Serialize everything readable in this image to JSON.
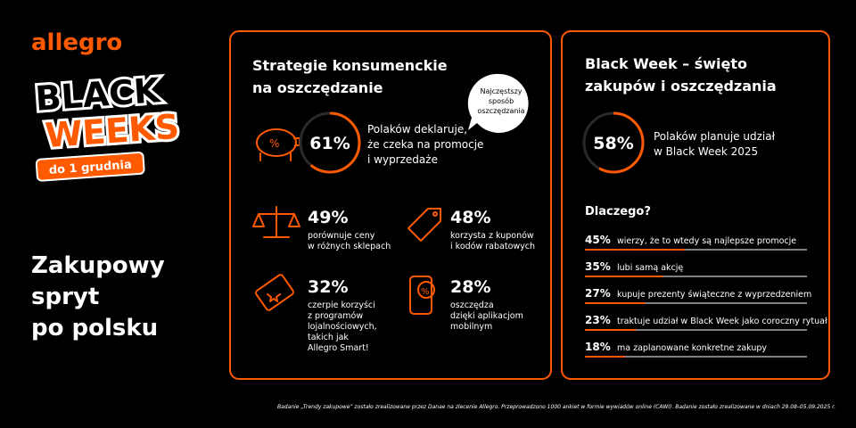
{
  "brand": "allegro",
  "badge": {
    "line1": "BLACK",
    "line2": "WEEKS",
    "date": "do 1 grudnia"
  },
  "headline": [
    "Zakupowy",
    "spryt",
    "po polsku"
  ],
  "strategies": {
    "title": [
      "Strategie konsumenckie",
      "na oszczędzanie"
    ],
    "bubble": [
      "Najczęstszy",
      "sposób",
      "oszczędzania"
    ],
    "main": {
      "value": 61,
      "label": "61%",
      "text": [
        "Polaków deklaruje,",
        "że czeka na promocje",
        "i wyprzedaże"
      ]
    },
    "items": [
      {
        "label": "49%",
        "text": [
          "porównuje ceny",
          "w różnych sklepach"
        ]
      },
      {
        "label": "48%",
        "text": [
          "korzysta z kuponów",
          "i kodów rabatowych"
        ]
      },
      {
        "label": "32%",
        "text": [
          "czerpie korzyści",
          "z programów",
          "lojalnościowych,",
          "takich jak",
          "Allegro Smart!"
        ]
      },
      {
        "label": "28%",
        "text": [
          "oszczędza",
          "dzięki aplikacjom",
          "mobilnym"
        ]
      }
    ]
  },
  "blackweek": {
    "title": [
      "Black Week – święto",
      "zakupów i oszczędzania"
    ],
    "main": {
      "value": 58,
      "label": "58%",
      "text": [
        "Polaków planuje udział",
        "w Black Week 2025"
      ]
    },
    "why_title": "Dlaczego?",
    "reasons": [
      {
        "value": 45,
        "label": "45%",
        "text": "wierzy, że to wtedy są najlepsze promocje"
      },
      {
        "value": 35,
        "label": "35%",
        "text": "lubi samą akcję"
      },
      {
        "value": 27,
        "label": "27%",
        "text": "kupuje prezenty świąteczne z wyprzedzeniem"
      },
      {
        "value": 23,
        "label": "23%",
        "text": "traktuje udział w Black Week jako coroczny rytuał"
      },
      {
        "value": 18,
        "label": "18%",
        "text": "ma zaplanowane konkretne zakupy"
      }
    ]
  },
  "footnote": "Badanie „Trendy zakupowe” zostało zrealizowane przez Danae na zlecenie Allegro. Przeprowadzono 1000 ankiet w formie wywiadów online (CAWI). Badanie zostało zrealizowane w dniach 29.08–05.09.2025 r."
}
